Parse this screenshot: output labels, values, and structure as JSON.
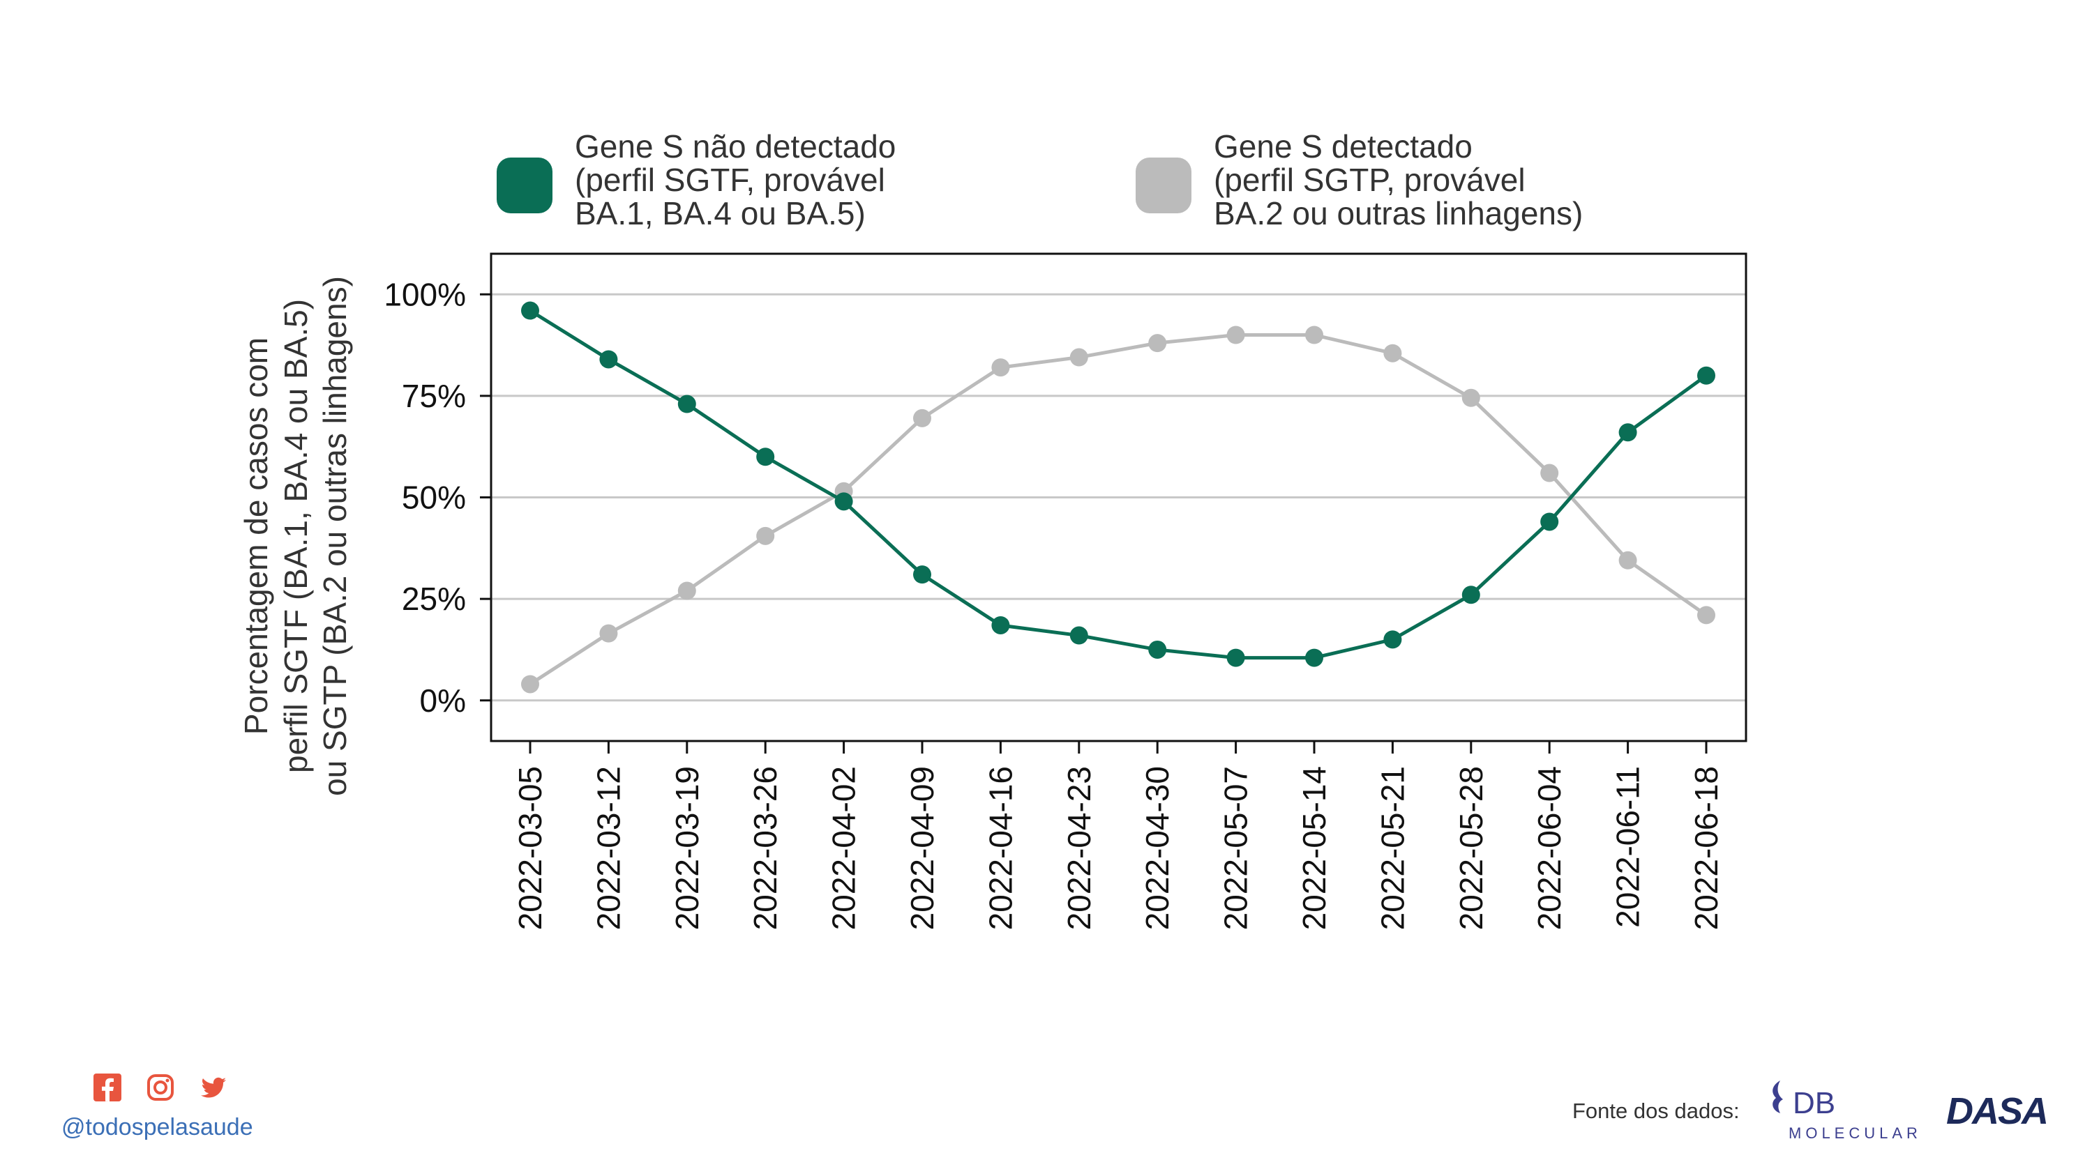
{
  "chart_data": {
    "type": "line",
    "x": [
      "2022-03-05",
      "2022-03-12",
      "2022-03-19",
      "2022-03-26",
      "2022-04-02",
      "2022-04-09",
      "2022-04-16",
      "2022-04-23",
      "2022-04-30",
      "2022-05-07",
      "2022-05-14",
      "2022-05-21",
      "2022-05-28",
      "2022-06-04",
      "2022-06-11",
      "2022-06-18"
    ],
    "series": [
      {
        "name": "Gene S não detectado (perfil SGTF, provável BA.1, BA.4 ou BA.5)",
        "legend_lines": [
          "Gene S não detectado",
          "(perfil SGTF, provável",
          "BA.1, BA.4 ou BA.5)"
        ],
        "color": "#0a6e55",
        "values": [
          96,
          84,
          73,
          60,
          49,
          31,
          18.5,
          16,
          12.5,
          10.5,
          10.5,
          15,
          26,
          44,
          66,
          80
        ]
      },
      {
        "name": "Gene S detectado (perfil SGTP, provável BA.2 ou outras linhagens)",
        "legend_lines": [
          "Gene S detectado",
          "(perfil SGTP, provável",
          "BA.2 ou outras linhagens)"
        ],
        "color": "#bbbbbb",
        "values": [
          4,
          16.5,
          27,
          40.5,
          51.5,
          69.5,
          82,
          84.5,
          88,
          90,
          90,
          85.5,
          74.5,
          56,
          34.5,
          21
        ]
      }
    ],
    "ylabel_lines": [
      "Porcentagem de casos com",
      "perfil SGTF (BA.1, BA.4 ou BA.5)",
      "ou SGTP (BA.2 ou outras linhagens)"
    ],
    "xlabel": "",
    "ylim": [
      -10,
      110
    ],
    "yticks": [
      0,
      25,
      50,
      75,
      100
    ],
    "ytick_labels": [
      "0%",
      "25%",
      "50%",
      "75%",
      "100%"
    ],
    "grid": "horizontal",
    "legend_position": "top"
  },
  "footer": {
    "handle": "@todospelasaude",
    "source_label": "Fonte dos dados:",
    "social_icons": [
      "facebook-icon",
      "instagram-icon",
      "twitter-icon"
    ],
    "social_color": "#e8553e",
    "logos": {
      "db": {
        "letters": "DB",
        "word": "MOLECULAR",
        "color": "#3c3f8f"
      },
      "dasa": {
        "word": "DASA",
        "color": "#1d2a5a"
      }
    }
  }
}
